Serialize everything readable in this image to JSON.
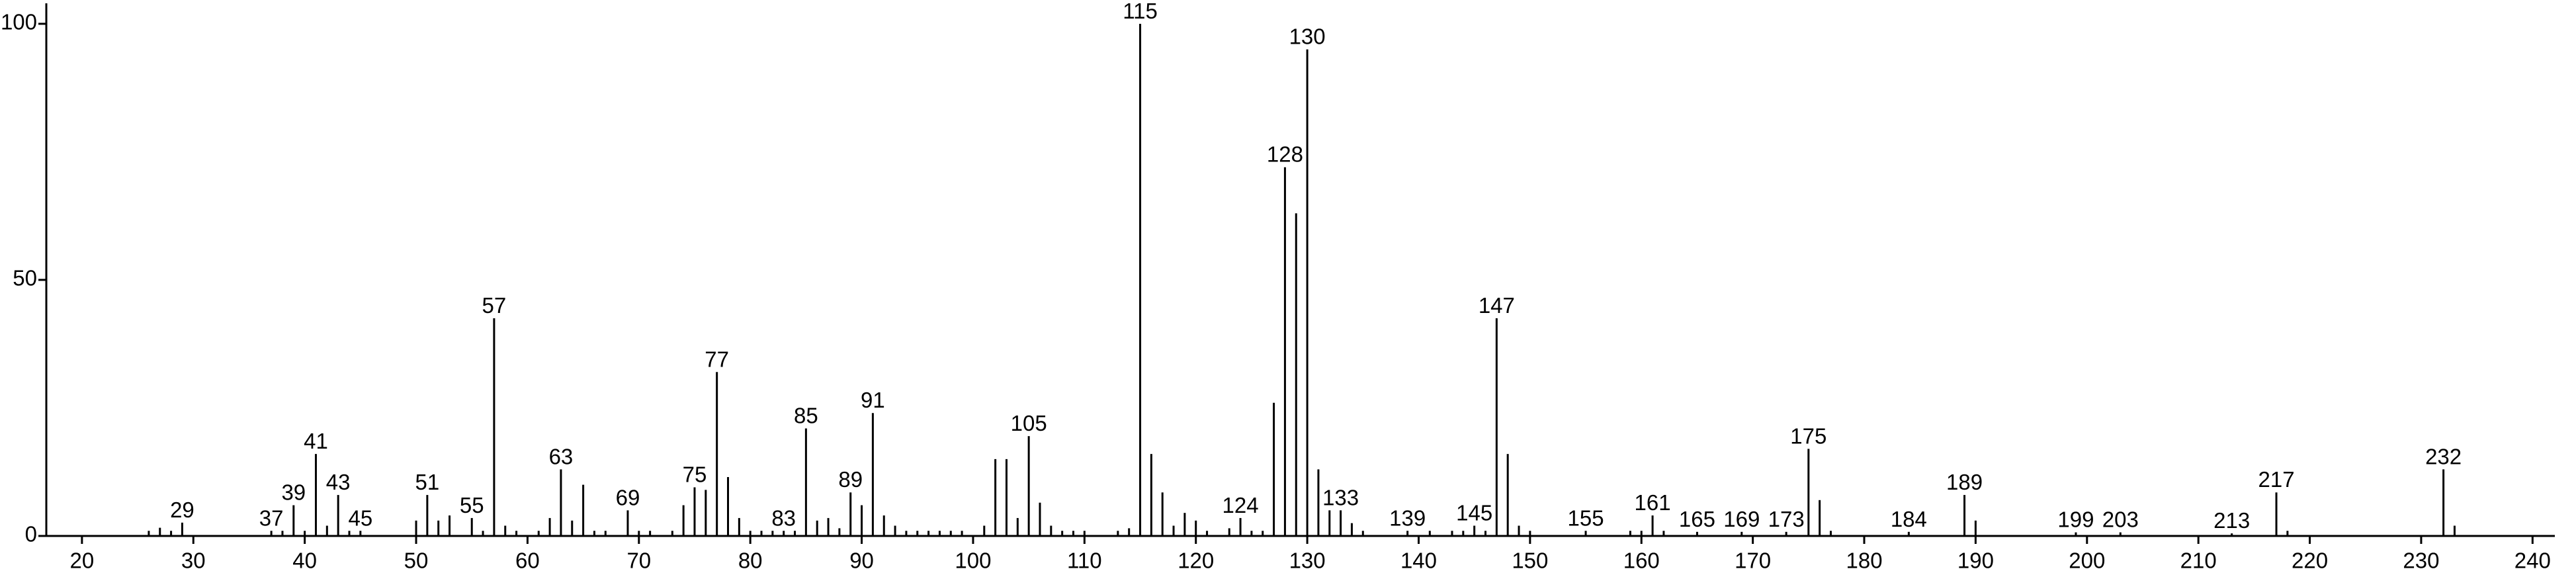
{
  "chart_data": {
    "type": "stem",
    "x": [
      26,
      27,
      28,
      29,
      37,
      38,
      39,
      40,
      41,
      42,
      43,
      44,
      45,
      50,
      51,
      52,
      53,
      55,
      56,
      57,
      58,
      59,
      61,
      62,
      63,
      64,
      65,
      66,
      67,
      69,
      70,
      71,
      73,
      74,
      75,
      76,
      77,
      78,
      79,
      80,
      81,
      82,
      83,
      84,
      85,
      86,
      87,
      88,
      89,
      90,
      91,
      92,
      93,
      94,
      95,
      96,
      97,
      98,
      99,
      101,
      102,
      103,
      104,
      105,
      106,
      107,
      108,
      109,
      110,
      113,
      114,
      115,
      116,
      117,
      118,
      119,
      120,
      121,
      123,
      124,
      125,
      126,
      127,
      128,
      129,
      130,
      131,
      132,
      133,
      134,
      135,
      139,
      141,
      143,
      144,
      145,
      146,
      147,
      148,
      149,
      150,
      155,
      159,
      160,
      161,
      162,
      165,
      169,
      173,
      175,
      176,
      177,
      184,
      189,
      190,
      199,
      203,
      213,
      217,
      218,
      232,
      233
    ],
    "values": [
      1,
      1.6,
      1,
      2.6,
      1,
      1,
      6,
      1,
      16,
      2,
      8,
      1,
      1,
      3,
      8,
      3,
      4,
      3.5,
      1,
      42.5,
      2,
      1,
      1,
      3.5,
      13,
      3,
      10,
      1,
      1,
      5,
      1,
      1,
      1,
      6,
      9.5,
      9,
      32,
      11.5,
      3.5,
      1,
      1,
      1,
      1,
      1,
      21,
      3,
      3.5,
      1.5,
      8.5,
      6,
      24,
      4,
      2,
      1,
      1,
      1,
      1,
      1,
      1,
      2,
      15,
      15,
      3.5,
      19.5,
      6.5,
      2,
      1,
      1,
      1,
      1,
      1.5,
      100,
      16,
      8.5,
      2,
      4.5,
      3,
      1,
      1.5,
      3.5,
      1,
      1,
      26,
      72,
      63,
      95,
      13,
      5,
      5,
      2.5,
      1,
      1,
      1,
      1,
      1,
      2,
      1,
      42.5,
      16,
      2,
      1,
      1,
      1,
      1,
      4,
      1,
      0.8,
      0.8,
      0.8,
      17,
      7,
      1,
      0.8,
      8,
      3,
      0.7,
      0.7,
      0.5,
      8.5,
      1,
      13,
      2
    ],
    "annotations": [
      29,
      37,
      39,
      41,
      43,
      45,
      51,
      55,
      57,
      63,
      69,
      75,
      77,
      83,
      85,
      89,
      91,
      105,
      115,
      124,
      128,
      130,
      133,
      139,
      145,
      147,
      155,
      161,
      165,
      169,
      173,
      175,
      184,
      189,
      199,
      203,
      213,
      217,
      232
    ],
    "color": "#000000",
    "xlim": [
      16.8,
      242
    ],
    "ylim": [
      0,
      104
    ],
    "xticks": [
      20,
      30,
      40,
      50,
      60,
      70,
      80,
      90,
      100,
      110,
      120,
      130,
      140,
      150,
      160,
      170,
      180,
      190,
      200,
      210,
      220,
      230,
      240
    ],
    "yticks": [
      0,
      50,
      100
    ]
  }
}
